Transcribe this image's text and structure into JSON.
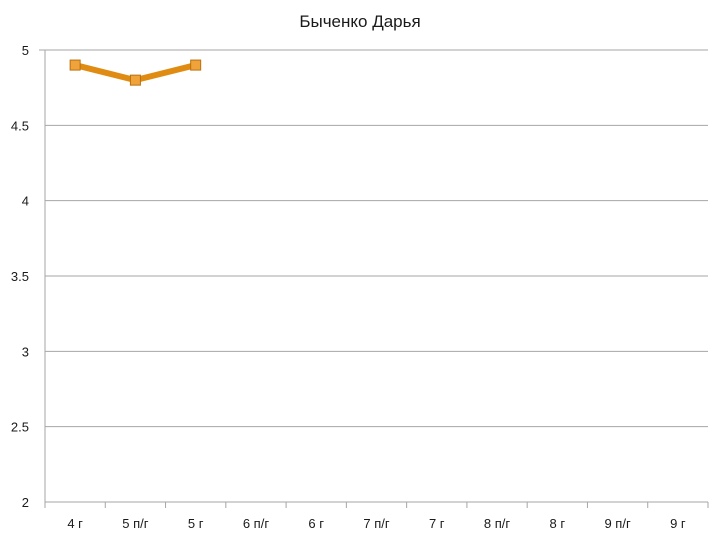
{
  "chart_data": {
    "type": "line",
    "title": "Быченко Дарья",
    "xlabel": "",
    "ylabel": "",
    "categories": [
      "4 г",
      "5 п/г",
      "5 г",
      "6 п/г",
      "6 г",
      "7 п/г",
      "7 г",
      "8 п/г",
      "8 г",
      "9 п/г",
      "9 г"
    ],
    "series": [
      {
        "values": [
          4.9,
          4.8,
          4.9,
          null,
          null,
          null,
          null,
          null,
          null,
          null,
          null
        ]
      }
    ],
    "ylim": [
      2,
      5
    ],
    "yticks": [
      "2",
      "2.5",
      "3",
      "3.5",
      "4",
      "4.5",
      "5"
    ],
    "grid": true,
    "legend": "none",
    "colors": {
      "line": "#e08c12",
      "marker_fill": "#f0a33a",
      "marker_stroke": "#b8700e",
      "grid": "#a6a6a6",
      "axis": "#a6a6a6"
    }
  }
}
